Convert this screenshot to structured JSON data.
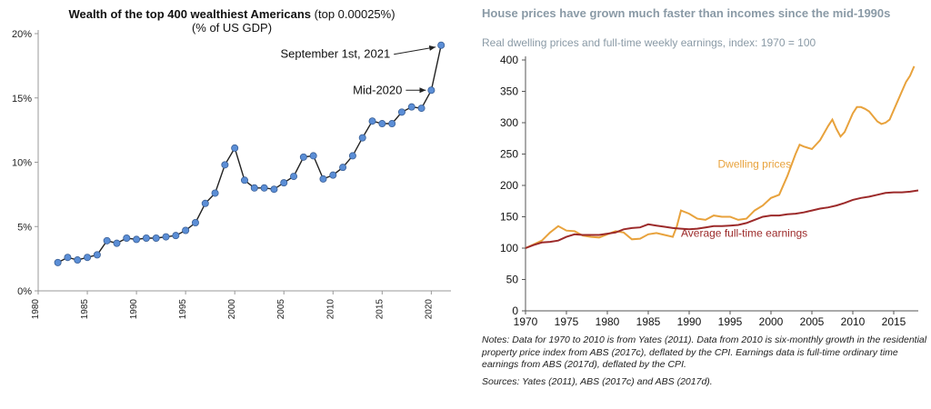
{
  "left": {
    "title_bold": "Wealth of the top 400 wealthiest Americans",
    "title_rest": " (top 0.00025%)",
    "subtitle": "(% of US GDP)"
  },
  "right": {
    "title": "House prices have grown much faster than incomes since the mid-1990s",
    "subtitle": "Real dwelling prices and full-time weekly earnings, index: 1970 = 100",
    "notes": "Notes: Data for 1970 to 2010 is from Yates (2011). Data from 2010 is six-monthly growth in the residential property price index from ABS (2017c), deflated by the CPI. Earnings data is full-time ordinary time earnings from ABS (2017d), deflated by the CPI.",
    "sources": "Sources: Yates (2011), ABS (2017c) and ABS (2017d)."
  },
  "chart_data": [
    {
      "type": "line",
      "title": "Wealth of the top 400 wealthiest Americans (top 0.00025%)",
      "subtitle": "(% of US GDP)",
      "xlabel": "",
      "ylabel": "",
      "xlim": [
        1980,
        2022
      ],
      "ylim": [
        0,
        20
      ],
      "x_ticks": [
        "1980",
        "1985",
        "1990",
        "1995",
        "2000",
        "2005",
        "2010",
        "2015",
        "2020"
      ],
      "y_ticks": [
        "0%",
        "5%",
        "10%",
        "15%",
        "20%"
      ],
      "grid": false,
      "marker_color": "#5b8ed6",
      "line_color": "#222222",
      "x": [
        1982,
        1983,
        1984,
        1985,
        1986,
        1987,
        1988,
        1989,
        1990,
        1991,
        1992,
        1993,
        1994,
        1995,
        1996,
        1997,
        1998,
        1999,
        2000,
        2001,
        2002,
        2003,
        2004,
        2005,
        2006,
        2007,
        2008,
        2009,
        2010,
        2011,
        2012,
        2013,
        2014,
        2015,
        2016,
        2017,
        2018,
        2019,
        2020,
        2021
      ],
      "values": [
        2.2,
        2.6,
        2.4,
        2.6,
        2.8,
        3.9,
        3.7,
        4.1,
        4.0,
        4.1,
        4.1,
        4.2,
        4.3,
        4.7,
        5.3,
        6.8,
        7.6,
        9.8,
        11.1,
        8.6,
        8.0,
        8.0,
        7.9,
        8.4,
        8.9,
        10.4,
        10.5,
        8.7,
        9.0,
        9.6,
        10.5,
        11.9,
        13.2,
        13.0,
        13.0,
        13.9,
        14.3,
        14.2,
        15.6,
        19.1
      ],
      "annotations": [
        {
          "text": "September 1st, 2021",
          "x": 2021,
          "y": 19.1
        },
        {
          "text": "Mid-2020",
          "x": 2020,
          "y": 15.6
        }
      ]
    },
    {
      "type": "line",
      "title": "House prices have grown much faster than incomes since the mid-1990s",
      "subtitle": "Real dwelling prices and full-time weekly earnings, index: 1970 = 100",
      "xlabel": "",
      "ylabel": "",
      "xlim": [
        1970,
        2018
      ],
      "ylim": [
        0,
        400
      ],
      "x_ticks": [
        "1970",
        "1975",
        "1980",
        "1985",
        "1990",
        "1995",
        "2000",
        "2005",
        "2010",
        "2015"
      ],
      "y_ticks": [
        "0",
        "50",
        "100",
        "150",
        "200",
        "250",
        "300",
        "350",
        "400"
      ],
      "grid": false,
      "series": [
        {
          "name": "Dwelling prices",
          "color": "#e8a23c",
          "x": [
            1970,
            1971,
            1972,
            1973,
            1974,
            1975,
            1976,
            1977,
            1978,
            1979,
            1980,
            1981,
            1982,
            1983,
            1984,
            1985,
            1986,
            1987,
            1988,
            1988.5,
            1989,
            1990,
            1991,
            1992,
            1993,
            1994,
            1995,
            1996,
            1997,
            1998,
            1999,
            2000,
            2001,
            2002,
            2003,
            2003.5,
            2004,
            2005,
            2006,
            2007,
            2007.5,
            2008,
            2008.5,
            2009,
            2009.5,
            2010,
            2010.5,
            2011,
            2011.5,
            2012,
            2012.5,
            2013,
            2013.5,
            2014,
            2014.5,
            2015,
            2015.5,
            2016,
            2016.5,
            2017,
            2017.5
          ],
          "values": [
            100,
            106,
            112,
            125,
            135,
            128,
            127,
            120,
            118,
            117,
            122,
            127,
            125,
            114,
            115,
            122,
            124,
            121,
            118,
            135,
            160,
            155,
            147,
            145,
            152,
            150,
            150,
            145,
            147,
            160,
            168,
            180,
            185,
            215,
            250,
            265,
            262,
            258,
            272,
            295,
            305,
            290,
            278,
            285,
            300,
            315,
            325,
            325,
            322,
            318,
            310,
            302,
            298,
            300,
            305,
            320,
            335,
            350,
            365,
            375,
            390
          ]
        },
        {
          "name": "Average full-time earnings",
          "color": "#9c2a2a",
          "x": [
            1970,
            1971,
            1972,
            1973,
            1974,
            1975,
            1976,
            1977,
            1978,
            1979,
            1980,
            1981,
            1982,
            1983,
            1984,
            1985,
            1986,
            1987,
            1988,
            1989,
            1990,
            1991,
            1992,
            1993,
            1994,
            1995,
            1996,
            1997,
            1998,
            1999,
            2000,
            2001,
            2002,
            2003,
            2004,
            2005,
            2006,
            2007,
            2008,
            2009,
            2010,
            2011,
            2012,
            2013,
            2014,
            2015,
            2016,
            2017,
            2018
          ],
          "values": [
            100,
            105,
            109,
            110,
            112,
            118,
            122,
            121,
            121,
            121,
            123,
            125,
            130,
            132,
            133,
            138,
            136,
            134,
            132,
            131,
            130,
            131,
            133,
            135,
            135,
            136,
            137,
            140,
            145,
            150,
            152,
            152,
            154,
            155,
            157,
            160,
            163,
            165,
            168,
            172,
            177,
            180,
            182,
            185,
            188,
            189,
            189,
            190,
            192
          ]
        }
      ],
      "annotations": [
        {
          "text": "Dwelling prices",
          "series": 0
        },
        {
          "text": "Average full-time earnings",
          "series": 1
        }
      ]
    }
  ]
}
